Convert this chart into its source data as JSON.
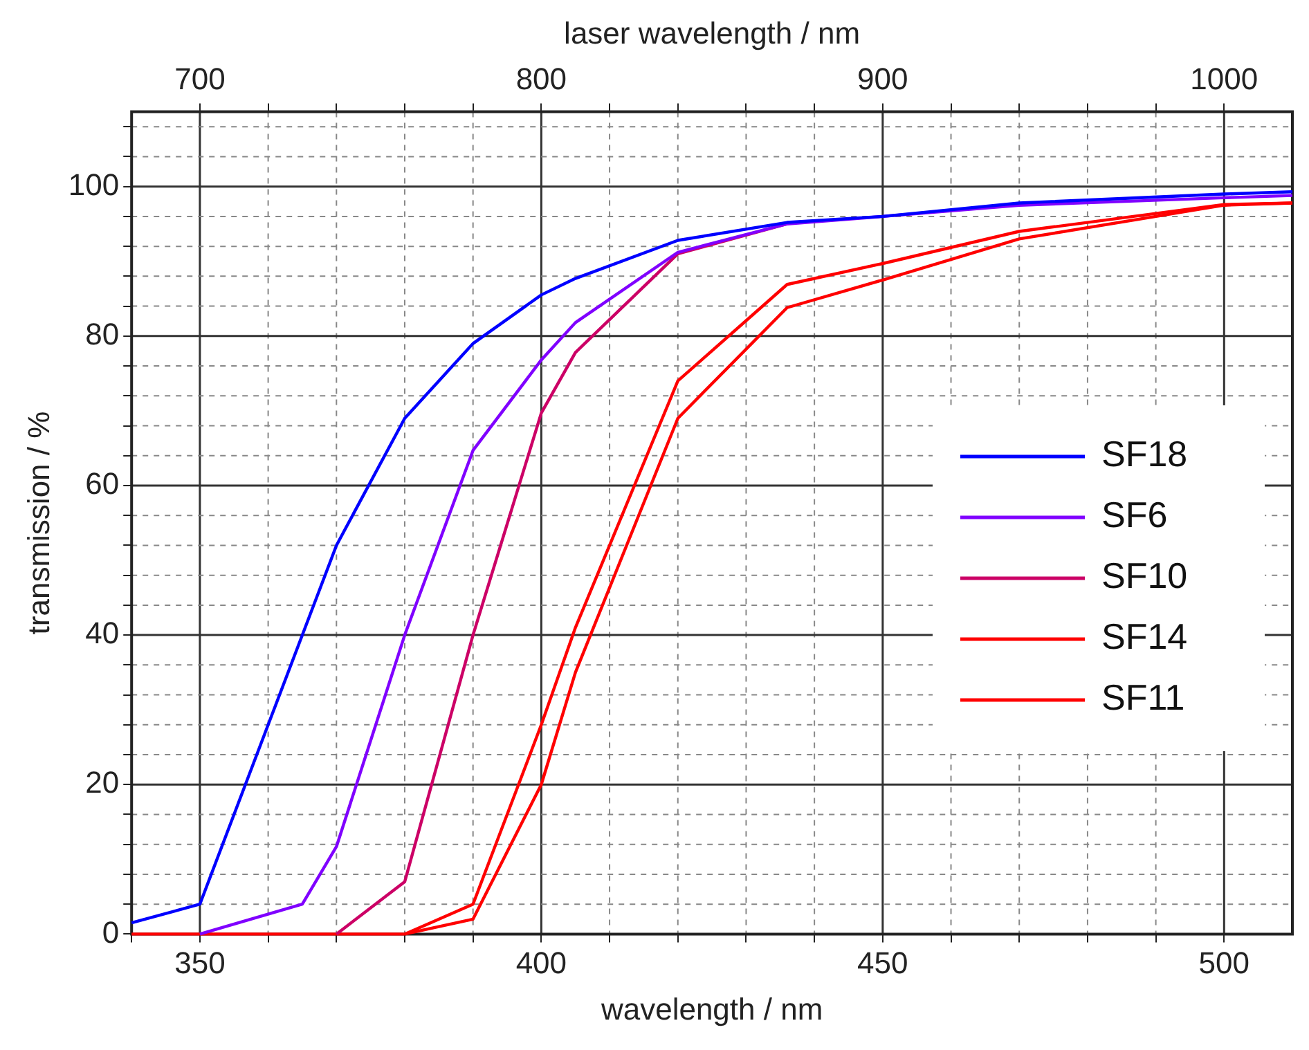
{
  "chart_data": {
    "type": "line",
    "xlabel": "wavelength / nm",
    "x2label": "laser wavelength / nm",
    "ylabel": "transmission / %",
    "xlim": [
      340,
      510
    ],
    "xticks": [
      {
        "value": 340,
        "label": null
      },
      350,
      {
        "value": 360,
        "label": null
      },
      {
        "value": 370,
        "label": null
      },
      {
        "value": 380,
        "label": null
      },
      {
        "value": 390,
        "label": null
      },
      400,
      {
        "value": 410,
        "label": null
      },
      {
        "value": 420,
        "label": null
      },
      {
        "value": 430,
        "label": null
      },
      {
        "value": 440,
        "label": null
      },
      450,
      {
        "value": 460,
        "label": null
      },
      {
        "value": 470,
        "label": null
      },
      {
        "value": 480,
        "label": null
      },
      {
        "value": 490,
        "label": null
      },
      500
    ],
    "x2lim": [
      680,
      1020
    ],
    "x2ticks": [
      700,
      {
        "value": 720,
        "label": null
      },
      {
        "value": 740,
        "label": null
      },
      {
        "value": 760,
        "label": null
      },
      {
        "value": 780,
        "label": null
      },
      800,
      {
        "value": 820,
        "label": null
      },
      {
        "value": 840,
        "label": null
      },
      {
        "value": 860,
        "label": null
      },
      {
        "value": 880,
        "label": null
      },
      900,
      {
        "value": 920,
        "label": null
      },
      {
        "value": 940,
        "label": null
      },
      {
        "value": 960,
        "label": null
      },
      {
        "value": 980,
        "label": null
      },
      1000
    ],
    "ylim": [
      0,
      110
    ],
    "yticks": [
      0,
      {
        "value": 4,
        "label": null
      },
      {
        "value": 8,
        "label": null
      },
      {
        "value": 12,
        "label": null
      },
      {
        "value": 16,
        "label": null
      },
      20,
      {
        "value": 24,
        "label": null
      },
      {
        "value": 28,
        "label": null
      },
      {
        "value": 32,
        "label": null
      },
      {
        "value": 36,
        "label": null
      },
      40,
      {
        "value": 44,
        "label": null
      },
      {
        "value": 48,
        "label": null
      },
      {
        "value": 52,
        "label": null
      },
      {
        "value": 56,
        "label": null
      },
      60,
      {
        "value": 64,
        "label": null
      },
      {
        "value": 68,
        "label": null
      },
      {
        "value": 72,
        "label": null
      },
      {
        "value": 76,
        "label": null
      },
      80,
      {
        "value": 84,
        "label": null
      },
      {
        "value": 88,
        "label": null
      },
      {
        "value": 92,
        "label": null
      },
      {
        "value": 96,
        "label": null
      },
      100,
      {
        "value": 104,
        "label": null
      },
      {
        "value": 108,
        "label": null
      }
    ],
    "grid": true,
    "legend": "right",
    "marker": "none",
    "line_style": "solid",
    "series": [
      {
        "name": "SF18",
        "color": "#0000ff",
        "x": [
          340,
          350,
          360,
          370,
          380,
          390,
          400,
          405,
          420,
          436,
          450,
          470,
          500,
          510
        ],
        "values": [
          1.5,
          4,
          28,
          52,
          69,
          79,
          85.5,
          87.7,
          92.8,
          95.2,
          96,
          97.8,
          99,
          99.3
        ]
      },
      {
        "name": "SF6",
        "color": "#8000ff",
        "x": [
          350,
          365,
          370,
          380,
          390,
          400,
          405,
          420,
          436,
          450,
          470,
          500,
          510
        ],
        "values": [
          0,
          4,
          11.7,
          40,
          64.7,
          76.8,
          81.8,
          91.2,
          95,
          96,
          97.5,
          98.5,
          98.8
        ]
      },
      {
        "name": "SF10",
        "color": "#cc0066",
        "x": [
          370,
          380,
          390,
          400,
          405,
          420,
          436
        ],
        "values": [
          0,
          7,
          40,
          69.7,
          77.8,
          91,
          95
        ]
      },
      {
        "name": "SF14",
        "color": "#ff0000",
        "x": [
          380,
          390,
          400,
          405,
          420,
          436,
          450,
          470,
          500,
          510
        ],
        "values": [
          0,
          4,
          28,
          41,
          74,
          86.9,
          89.7,
          94,
          97.6,
          97.8
        ]
      },
      {
        "name": "SF11",
        "color": "#ff0000",
        "x": [
          340,
          380,
          390,
          400,
          405,
          420,
          436,
          450,
          470,
          500,
          510
        ],
        "values": [
          0,
          0,
          2,
          20,
          35,
          69,
          83.8,
          87.5,
          93,
          97.5,
          97.8
        ]
      }
    ]
  }
}
